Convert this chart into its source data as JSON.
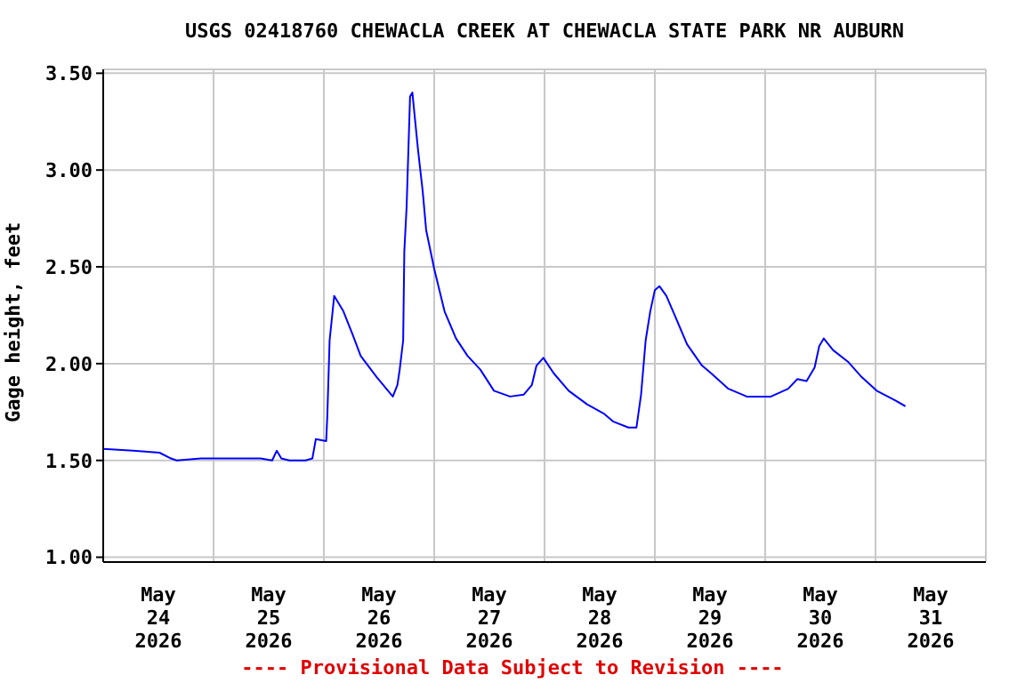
{
  "chart_data": {
    "type": "line",
    "title": "USGS 02418760 CHEWACLA CREEK AT CHEWACLA STATE PARK NR AUBURN",
    "ylabel": "Gage height, feet",
    "annotations": [
      "---- Provisional Data Subject to Revision ----"
    ],
    "x": [
      "2026-05-24T00:00",
      "2026-05-24T06:30",
      "2026-05-24T12:15",
      "2026-05-24T14:45",
      "2026-05-24T16:00",
      "2026-05-24T21:15",
      "2026-05-25T10:15",
      "2026-05-25T12:45",
      "2026-05-25T13:45",
      "2026-05-25T14:45",
      "2026-05-25T16:30",
      "2026-05-25T20:00",
      "2026-05-25T21:30",
      "2026-05-25T22:15",
      "2026-05-26T00:30",
      "2026-05-26T00:45",
      "2026-05-26T01:15",
      "2026-05-26T02:15",
      "2026-05-26T04:15",
      "2026-05-26T06:15",
      "2026-05-26T08:00",
      "2026-05-26T11:30",
      "2026-05-26T15:00",
      "2026-05-26T16:00",
      "2026-05-26T16:30",
      "2026-05-26T17:15",
      "2026-05-26T17:30",
      "2026-05-26T18:00",
      "2026-05-26T18:45",
      "2026-05-26T19:15",
      "2026-05-26T20:30",
      "2026-05-26T21:30",
      "2026-05-26T22:15",
      "2026-05-27T00:00",
      "2026-05-27T02:15",
      "2026-05-27T04:45",
      "2026-05-27T07:15",
      "2026-05-27T10:00",
      "2026-05-27T13:00",
      "2026-05-27T16:30",
      "2026-05-27T19:30",
      "2026-05-27T21:15",
      "2026-05-27T22:15",
      "2026-05-27T23:45",
      "2026-05-28T02:00",
      "2026-05-28T05:15",
      "2026-05-28T09:15",
      "2026-05-28T13:00",
      "2026-05-28T15:00",
      "2026-05-28T18:15",
      "2026-05-28T20:00",
      "2026-05-28T21:00",
      "2026-05-28T22:00",
      "2026-05-28T23:00",
      "2026-05-29T00:00",
      "2026-05-29T01:00",
      "2026-05-29T02:30",
      "2026-05-29T04:30",
      "2026-05-29T07:00",
      "2026-05-29T10:15",
      "2026-05-29T12:15",
      "2026-05-29T16:00",
      "2026-05-29T20:00",
      "2026-05-30T01:15",
      "2026-05-30T05:00",
      "2026-05-30T07:00",
      "2026-05-30T09:00",
      "2026-05-30T10:45",
      "2026-05-30T11:45",
      "2026-05-30T12:45",
      "2026-05-30T14:45",
      "2026-05-30T18:00",
      "2026-05-30T21:00",
      "2026-05-31T00:15",
      "2026-05-31T04:15",
      "2026-05-31T06:30"
    ],
    "series": [
      {
        "color": "#0000ff",
        "values": [
          1.56,
          1.55,
          1.54,
          1.51,
          1.5,
          1.51,
          1.51,
          1.5,
          1.55,
          1.51,
          1.5,
          1.5,
          1.51,
          1.61,
          1.6,
          1.73,
          2.12,
          2.35,
          2.27,
          2.15,
          2.04,
          1.93,
          1.83,
          1.89,
          1.97,
          2.12,
          2.58,
          2.81,
          3.38,
          3.4,
          3.1,
          2.89,
          2.69,
          2.49,
          2.27,
          2.13,
          2.04,
          1.97,
          1.86,
          1.83,
          1.84,
          1.89,
          1.99,
          2.03,
          1.95,
          1.86,
          1.79,
          1.74,
          1.7,
          1.67,
          1.67,
          1.84,
          2.12,
          2.27,
          2.38,
          2.4,
          2.35,
          2.24,
          2.1,
          1.99,
          1.95,
          1.87,
          1.83,
          1.83,
          1.87,
          1.92,
          1.91,
          1.98,
          2.09,
          2.13,
          2.07,
          2.01,
          1.93,
          1.86,
          1.81,
          1.78
        ]
      }
    ],
    "xlim": [
      "2026-05-24T00:00",
      "2026-06-01T00:00"
    ],
    "xticks": [
      {
        "value": "2026-05-24T00:00",
        "label": null
      },
      {
        "value": "2026-05-24T12:00",
        "label": "May 24 2026"
      },
      {
        "value": "2026-05-25T00:00",
        "label": null
      },
      {
        "value": "2026-05-25T12:00",
        "label": "May 25 2026"
      },
      {
        "value": "2026-05-26T00:00",
        "label": null
      },
      {
        "value": "2026-05-26T12:00",
        "label": "May 26 2026"
      },
      {
        "value": "2026-05-27T00:00",
        "label": null
      },
      {
        "value": "2026-05-27T12:00",
        "label": "May 27 2026"
      },
      {
        "value": "2026-05-28T00:00",
        "label": null
      },
      {
        "value": "2026-05-28T12:00",
        "label": "May 28 2026"
      },
      {
        "value": "2026-05-29T00:00",
        "label": null
      },
      {
        "value": "2026-05-29T12:00",
        "label": "May 29 2026"
      },
      {
        "value": "2026-05-30T00:00",
        "label": null
      },
      {
        "value": "2026-05-30T12:00",
        "label": "May 30 2026"
      },
      {
        "value": "2026-05-31T00:00",
        "label": null
      },
      {
        "value": "2026-05-31T12:00",
        "label": "May 31 2026"
      },
      {
        "value": "2026-06-01T00:00",
        "label": null
      }
    ],
    "ylim": [
      0.975,
      3.52
    ],
    "yticks": [
      {
        "value": 1.0,
        "label": "1.00"
      },
      {
        "value": 1.5,
        "label": "1.50"
      },
      {
        "value": 2.0,
        "label": "2.00"
      },
      {
        "value": 2.5,
        "label": "2.50"
      },
      {
        "value": 3.0,
        "label": "3.00"
      },
      {
        "value": 3.5,
        "label": "3.50"
      }
    ],
    "grid": true,
    "marker": "none",
    "line_style": "solid"
  }
}
